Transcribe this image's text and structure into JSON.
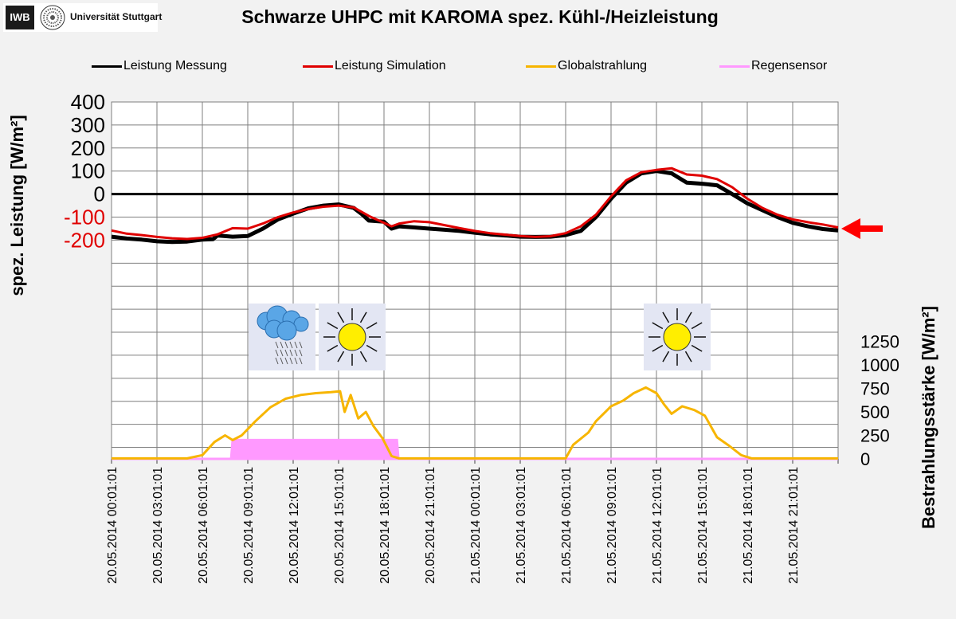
{
  "header": {
    "logo_iwb": "IWB",
    "logo_university": "Universität Stuttgart",
    "title": "Schwarze UHPC mit KAROMA spez. Kühl-/Heizleistung"
  },
  "colors": {
    "measurement": "#000000",
    "simulation": "#e00000",
    "radiation": "#f7b500",
    "rain": "#ff99ff",
    "negative_tick": "#e00000",
    "grid": "#7f7f7f",
    "plot_bg": "#ffffff",
    "arrow": "#ff0000"
  },
  "icons": [
    {
      "name": "cloud-rain-icon"
    },
    {
      "name": "sun-icon"
    },
    {
      "name": "sun-icon"
    }
  ],
  "chart_data": {
    "type": "line",
    "title": "Schwarze UHPC mit KAROMA spez. Kühl-/Heizleistung",
    "legend": {
      "placement": "top",
      "entries": [
        "Leistung Messung",
        "Leistung Simulation",
        "Globalstrahlung",
        "Regensensor"
      ]
    },
    "x_axis": {
      "label": "",
      "tick_labels": [
        "20.05.2014 00:01:01",
        "20.05.2014 03:01:01",
        "20.05.2014 06:01:01",
        "20.05.2014 09:01:01",
        "20.05.2014 12:01:01",
        "20.05.2014 15:01:01",
        "20.05.2014 18:01:01",
        "20.05.2014 21:01:01",
        "21.05.2014 00:01:01",
        "21.05.2014 03:01:01",
        "21.05.2014 06:01:01",
        "21.05.2014 09:01:01",
        "21.05.2014 12:01:01",
        "21.05.2014 15:01:01",
        "21.05.2014 18:01:01",
        "21.05.2014 21:01:01"
      ],
      "range_hours": [
        0,
        48
      ]
    },
    "y_axis_left": {
      "label": "spez. Leistung [W/m²]",
      "ticks": [
        400,
        300,
        200,
        100,
        0,
        -100,
        -200
      ],
      "range": [
        -1150,
        400
      ],
      "grid": true
    },
    "y_axis_right": {
      "label": "Bestrahlungsstärke [W/m²]",
      "ticks": [
        1250,
        1000,
        750,
        500,
        250,
        0
      ],
      "range": [
        0,
        3800
      ]
    },
    "series": [
      {
        "name": "Leistung Messung",
        "axis": "left",
        "points": [
          [
            0,
            -185
          ],
          [
            1,
            -193
          ],
          [
            2,
            -198
          ],
          [
            3,
            -205
          ],
          [
            4,
            -208
          ],
          [
            5,
            -206
          ],
          [
            6,
            -198
          ],
          [
            6.7,
            -196
          ],
          [
            7,
            -180
          ],
          [
            8,
            -185
          ],
          [
            9,
            -182
          ],
          [
            10,
            -150
          ],
          [
            11,
            -110
          ],
          [
            12,
            -85
          ],
          [
            13,
            -62
          ],
          [
            14,
            -50
          ],
          [
            15,
            -45
          ],
          [
            16,
            -60
          ],
          [
            16.5,
            -85
          ],
          [
            17,
            -115
          ],
          [
            18,
            -120
          ],
          [
            18.5,
            -150
          ],
          [
            19,
            -140
          ],
          [
            20,
            -145
          ],
          [
            21,
            -150
          ],
          [
            22,
            -155
          ],
          [
            23,
            -160
          ],
          [
            24,
            -168
          ],
          [
            25,
            -175
          ],
          [
            26,
            -180
          ],
          [
            27,
            -185
          ],
          [
            28,
            -186
          ],
          [
            29,
            -185
          ],
          [
            30,
            -178
          ],
          [
            31,
            -160
          ],
          [
            32,
            -100
          ],
          [
            33,
            -20
          ],
          [
            34,
            50
          ],
          [
            35,
            90
          ],
          [
            36,
            100
          ],
          [
            37,
            90
          ],
          [
            38,
            50
          ],
          [
            39,
            45
          ],
          [
            40,
            38
          ],
          [
            41,
            0
          ],
          [
            42,
            -40
          ],
          [
            43,
            -70
          ],
          [
            44,
            -100
          ],
          [
            45,
            -125
          ],
          [
            46,
            -140
          ],
          [
            47,
            -152
          ],
          [
            48,
            -158
          ]
        ]
      },
      {
        "name": "Leistung Simulation",
        "axis": "left",
        "points": [
          [
            0,
            -158
          ],
          [
            1,
            -172
          ],
          [
            2,
            -178
          ],
          [
            3,
            -186
          ],
          [
            4,
            -192
          ],
          [
            5,
            -195
          ],
          [
            6,
            -190
          ],
          [
            7,
            -175
          ],
          [
            8,
            -148
          ],
          [
            9,
            -150
          ],
          [
            10,
            -128
          ],
          [
            11,
            -100
          ],
          [
            12,
            -80
          ],
          [
            13,
            -65
          ],
          [
            14,
            -55
          ],
          [
            15,
            -50
          ],
          [
            16,
            -58
          ],
          [
            17,
            -95
          ],
          [
            18,
            -125
          ],
          [
            18.5,
            -140
          ],
          [
            19,
            -128
          ],
          [
            20,
            -118
          ],
          [
            21,
            -122
          ],
          [
            22,
            -135
          ],
          [
            23,
            -148
          ],
          [
            24,
            -160
          ],
          [
            25,
            -170
          ],
          [
            26,
            -176
          ],
          [
            27,
            -182
          ],
          [
            28,
            -186
          ],
          [
            29,
            -183
          ],
          [
            30,
            -170
          ],
          [
            31,
            -140
          ],
          [
            32,
            -90
          ],
          [
            33,
            -10
          ],
          [
            34,
            60
          ],
          [
            35,
            95
          ],
          [
            36,
            105
          ],
          [
            37,
            112
          ],
          [
            38,
            85
          ],
          [
            39,
            80
          ],
          [
            40,
            65
          ],
          [
            41,
            30
          ],
          [
            42,
            -20
          ],
          [
            43,
            -60
          ],
          [
            44,
            -90
          ],
          [
            45,
            -110
          ],
          [
            46,
            -122
          ],
          [
            47,
            -132
          ],
          [
            48,
            -145
          ]
        ]
      },
      {
        "name": "Globalstrahlung",
        "axis": "right",
        "points": [
          [
            0,
            5
          ],
          [
            5,
            5
          ],
          [
            6,
            40
          ],
          [
            6.8,
            180
          ],
          [
            7.5,
            250
          ],
          [
            8,
            200
          ],
          [
            8.6,
            250
          ],
          [
            9.5,
            400
          ],
          [
            10.5,
            550
          ],
          [
            11.5,
            640
          ],
          [
            12.5,
            680
          ],
          [
            13.5,
            700
          ],
          [
            14.5,
            710
          ],
          [
            15.1,
            720
          ],
          [
            15.4,
            500
          ],
          [
            15.8,
            680
          ],
          [
            16.3,
            430
          ],
          [
            16.8,
            500
          ],
          [
            17.3,
            350
          ],
          [
            17.9,
            220
          ],
          [
            18.5,
            30
          ],
          [
            19,
            5
          ],
          [
            30,
            5
          ],
          [
            30.5,
            150
          ],
          [
            31.5,
            280
          ],
          [
            32,
            400
          ],
          [
            33,
            560
          ],
          [
            33.8,
            620
          ],
          [
            34.5,
            700
          ],
          [
            35.3,
            760
          ],
          [
            36,
            700
          ],
          [
            36.5,
            580
          ],
          [
            37,
            480
          ],
          [
            37.7,
            560
          ],
          [
            38.5,
            520
          ],
          [
            39.2,
            460
          ],
          [
            40,
            230
          ],
          [
            40.8,
            140
          ],
          [
            41.6,
            40
          ],
          [
            42.3,
            5
          ],
          [
            48,
            5
          ]
        ]
      },
      {
        "name": "Regensensor",
        "axis": "right",
        "points": [
          [
            0,
            0
          ],
          [
            7.9,
            0
          ],
          [
            8,
            200
          ],
          [
            18.85,
            200
          ],
          [
            18.95,
            0
          ],
          [
            48,
            0
          ]
        ]
      }
    ],
    "annotations": [
      {
        "type": "horizontal-line",
        "axis": "left",
        "value": 0
      },
      {
        "type": "arrow",
        "axis": "left",
        "value": -150,
        "side": "right"
      }
    ]
  }
}
